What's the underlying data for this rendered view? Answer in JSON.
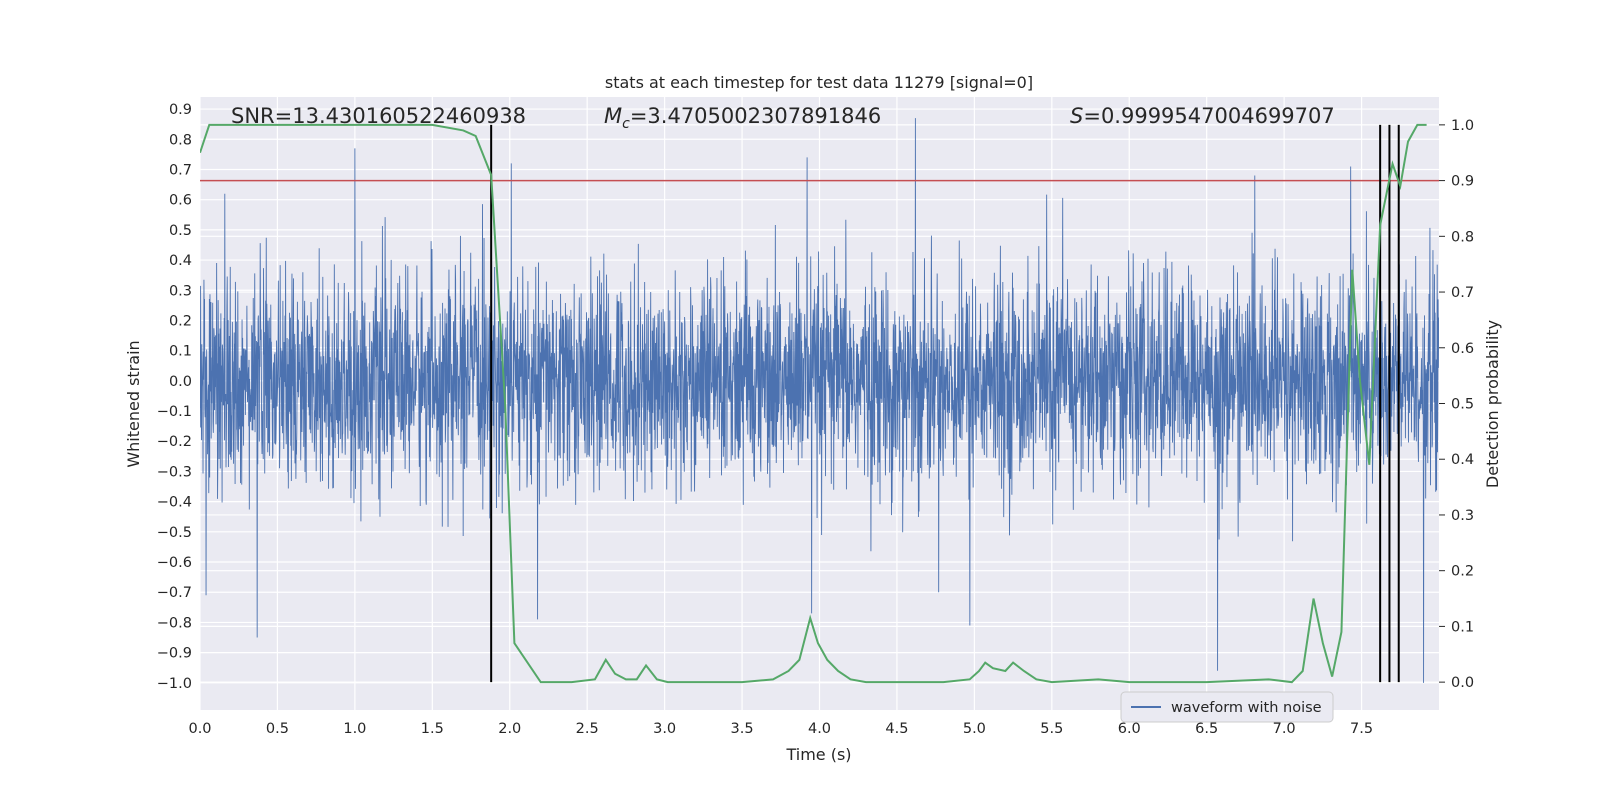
{
  "chart_data": {
    "type": "line",
    "title": "stats at each timestep for test data 11279 [signal=0]",
    "xlabel": "Time (s)",
    "ylabel": "Whitened strain",
    "y2label": "Detection probability",
    "xlim": [
      0.0,
      8.0
    ],
    "ylim": [
      -1.09,
      0.94
    ],
    "y2lim": [
      -0.05,
      1.05
    ],
    "x_ticks": [
      "0.0",
      "0.5",
      "1.0",
      "1.5",
      "2.0",
      "2.5",
      "3.0",
      "3.5",
      "4.0",
      "4.5",
      "5.0",
      "5.5",
      "6.0",
      "6.5",
      "7.0",
      "7.5"
    ],
    "y_ticks": [
      "0.9",
      "0.8",
      "0.7",
      "0.6",
      "0.5",
      "0.4",
      "0.3",
      "0.2",
      "0.1",
      "0.0",
      "−0.1",
      "−0.2",
      "−0.3",
      "−0.4",
      "−0.5",
      "−0.6",
      "−0.7",
      "−0.8",
      "−0.9",
      "−1.0"
    ],
    "y2_ticks": [
      "1.0",
      "0.9",
      "0.8",
      "0.7",
      "0.6",
      "0.5",
      "0.4",
      "0.3",
      "0.2",
      "0.1",
      "0.0"
    ],
    "annotations": {
      "snr": "SNR=13.430160522460938",
      "mc": "=3.4705002307891846",
      "mc_symbol": "M",
      "mc_sub": "c",
      "s": "=0.9999547004699707",
      "s_symbol": "S"
    },
    "legend": {
      "label": "waveform with noise",
      "location": "lower-right"
    },
    "series": [
      {
        "name": "waveform with noise",
        "color": "#4c72b0",
        "sample_rate": 512,
        "envelope_typical": 0.3,
        "notable_peaks": [
          {
            "t": 1.0,
            "v": 0.77
          },
          {
            "t": 2.01,
            "v": 0.72
          },
          {
            "t": 3.92,
            "v": 0.74
          },
          {
            "t": 4.62,
            "v": 0.87
          },
          {
            "t": 3.95,
            "v": -0.77
          },
          {
            "t": 0.37,
            "v": -0.85
          },
          {
            "t": 2.18,
            "v": -0.79
          },
          {
            "t": 4.97,
            "v": -0.81
          },
          {
            "t": 6.57,
            "v": -0.96
          },
          {
            "t": 7.9,
            "v": -1.0
          },
          {
            "t": 0.04,
            "v": -0.71
          },
          {
            "t": 7.43,
            "v": 0.71
          }
        ]
      },
      {
        "name": "detection probability",
        "axis": "right",
        "color": "#55a868",
        "x": [
          0.0,
          0.06,
          1.5,
          1.7,
          1.78,
          1.88,
          1.97,
          2.03,
          2.2,
          2.4,
          2.55,
          2.62,
          2.68,
          2.75,
          2.82,
          2.88,
          2.95,
          3.02,
          3.3,
          3.5,
          3.7,
          3.8,
          3.87,
          3.94,
          3.99,
          4.05,
          4.12,
          4.2,
          4.3,
          4.5,
          4.8,
          4.97,
          5.03,
          5.07,
          5.12,
          5.2,
          5.25,
          5.32,
          5.4,
          5.5,
          5.8,
          6.0,
          6.5,
          6.9,
          7.05,
          7.12,
          7.19,
          7.25,
          7.31,
          7.37,
          7.44,
          7.49,
          7.55,
          7.62,
          7.7,
          7.75,
          7.8,
          7.86,
          7.92
        ],
        "values": [
          0.95,
          1.0,
          1.0,
          0.99,
          0.98,
          0.91,
          0.5,
          0.07,
          0.0,
          0.0,
          0.005,
          0.04,
          0.015,
          0.005,
          0.005,
          0.03,
          0.005,
          0.0,
          0.0,
          0.0,
          0.005,
          0.02,
          0.04,
          0.115,
          0.07,
          0.04,
          0.02,
          0.005,
          0.0,
          0.0,
          0.0,
          0.005,
          0.02,
          0.035,
          0.025,
          0.02,
          0.035,
          0.02,
          0.005,
          0.0,
          0.005,
          0.0,
          0.0,
          0.005,
          0.0,
          0.02,
          0.15,
          0.07,
          0.01,
          0.09,
          0.74,
          0.54,
          0.39,
          0.82,
          0.93,
          0.89,
          0.97,
          1.0,
          1.0
        ]
      }
    ],
    "threshold": {
      "value": 0.9,
      "axis": "right",
      "color": "#c44e52"
    },
    "vlines": [
      1.88,
      7.62,
      7.68,
      7.74
    ],
    "vline_color": "#000000"
  }
}
